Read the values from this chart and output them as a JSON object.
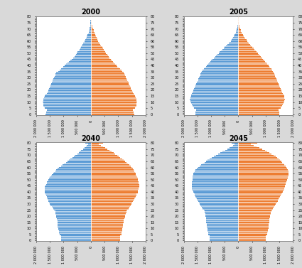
{
  "years": [
    "2000",
    "2005",
    "2040",
    "2045"
  ],
  "n_ages": 81,
  "male_color": "#5B9BD5",
  "female_color": "#ED7D31",
  "background_color": "#D9D9D9",
  "plot_background": "#FFFFFF",
  "title_fontsize": 7,
  "tick_fontsize": 3.5,
  "xlim": 2000000,
  "x_ticks": [
    -2000000,
    -1500000,
    -1000000,
    -500000,
    0,
    500000,
    1000000,
    1500000,
    2000000
  ],
  "x_tick_labels": [
    "2 000 000",
    "1 500 000",
    "1 000 000",
    "500 000",
    "0",
    "500 000",
    "1 000 000",
    "1 500 000",
    "2 000 000"
  ],
  "age_tick_step": 5,
  "age_tick_labels": [
    "0",
    "5",
    "10",
    "15",
    "20",
    "25",
    "30",
    "35",
    "40",
    "45",
    "50",
    "55",
    "60",
    "65",
    "70",
    "75",
    "80"
  ],
  "data": {
    "2000": {
      "male": [
        1650000,
        1640000,
        1630000,
        1620000,
        1610000,
        1700000,
        1720000,
        1730000,
        1740000,
        1750000,
        1760000,
        1750000,
        1740000,
        1730000,
        1720000,
        1680000,
        1650000,
        1620000,
        1590000,
        1570000,
        1550000,
        1530000,
        1510000,
        1490000,
        1470000,
        1450000,
        1430000,
        1410000,
        1390000,
        1370000,
        1350000,
        1330000,
        1310000,
        1290000,
        1270000,
        1200000,
        1150000,
        1100000,
        1050000,
        1000000,
        950000,
        900000,
        850000,
        800000,
        750000,
        700000,
        650000,
        600000,
        570000,
        540000,
        510000,
        480000,
        450000,
        420000,
        390000,
        360000,
        330000,
        300000,
        270000,
        240000,
        220000,
        200000,
        180000,
        160000,
        140000,
        120000,
        100000,
        85000,
        70000,
        60000,
        50000,
        40000,
        35000,
        30000,
        25000,
        20000,
        15000,
        12000,
        9000,
        7000,
        60000
      ],
      "female": [
        1580000,
        1570000,
        1560000,
        1550000,
        1540000,
        1620000,
        1640000,
        1660000,
        1670000,
        1680000,
        1690000,
        1680000,
        1670000,
        1660000,
        1650000,
        1620000,
        1590000,
        1560000,
        1530000,
        1510000,
        1490000,
        1470000,
        1450000,
        1430000,
        1410000,
        1390000,
        1370000,
        1350000,
        1330000,
        1310000,
        1290000,
        1270000,
        1250000,
        1230000,
        1210000,
        1160000,
        1110000,
        1060000,
        1020000,
        970000,
        930000,
        880000,
        840000,
        800000,
        760000,
        730000,
        690000,
        650000,
        620000,
        590000,
        560000,
        530000,
        500000,
        470000,
        440000,
        410000,
        380000,
        350000,
        320000,
        290000,
        270000,
        250000,
        230000,
        210000,
        190000,
        170000,
        150000,
        130000,
        110000,
        95000,
        80000,
        65000,
        55000,
        45000,
        37000,
        30000,
        24000,
        18000,
        13000,
        9000,
        90000
      ]
    },
    "2005": {
      "male": [
        1580000,
        1570000,
        1560000,
        1550000,
        1540000,
        1620000,
        1650000,
        1680000,
        1700000,
        1720000,
        1750000,
        1760000,
        1770000,
        1760000,
        1750000,
        1740000,
        1720000,
        1700000,
        1680000,
        1660000,
        1640000,
        1620000,
        1600000,
        1580000,
        1560000,
        1540000,
        1520000,
        1500000,
        1480000,
        1460000,
        1440000,
        1420000,
        1400000,
        1380000,
        1360000,
        1330000,
        1300000,
        1270000,
        1230000,
        1190000,
        1150000,
        1110000,
        1070000,
        1030000,
        990000,
        950000,
        900000,
        855000,
        810000,
        765000,
        720000,
        675000,
        630000,
        585000,
        540000,
        495000,
        450000,
        405000,
        360000,
        315000,
        280000,
        250000,
        220000,
        190000,
        160000,
        140000,
        120000,
        100000,
        82000,
        66000,
        52000,
        40000,
        32000,
        25000,
        19000,
        14000,
        11000,
        8500,
        6000,
        4500,
        55000
      ],
      "female": [
        1510000,
        1500000,
        1490000,
        1480000,
        1470000,
        1550000,
        1580000,
        1610000,
        1630000,
        1650000,
        1680000,
        1690000,
        1700000,
        1690000,
        1680000,
        1670000,
        1650000,
        1630000,
        1610000,
        1590000,
        1570000,
        1550000,
        1530000,
        1510000,
        1490000,
        1470000,
        1450000,
        1430000,
        1410000,
        1390000,
        1370000,
        1350000,
        1330000,
        1310000,
        1290000,
        1270000,
        1240000,
        1210000,
        1170000,
        1130000,
        1100000,
        1060000,
        1020000,
        980000,
        940000,
        910000,
        870000,
        830000,
        790000,
        750000,
        710000,
        670000,
        630000,
        590000,
        550000,
        510000,
        470000,
        430000,
        390000,
        350000,
        320000,
        290000,
        260000,
        230000,
        200000,
        175000,
        150000,
        128000,
        106000,
        86000,
        68000,
        53000,
        42000,
        32000,
        24000,
        17000,
        13000,
        9500,
        7000,
        5000,
        80000
      ]
    },
    "2040": {
      "male": [
        1100000,
        1100000,
        1100000,
        1100000,
        1100000,
        1150000,
        1160000,
        1170000,
        1180000,
        1190000,
        1200000,
        1210000,
        1210000,
        1210000,
        1210000,
        1220000,
        1230000,
        1240000,
        1250000,
        1260000,
        1270000,
        1280000,
        1290000,
        1300000,
        1310000,
        1350000,
        1380000,
        1410000,
        1440000,
        1470000,
        1500000,
        1530000,
        1560000,
        1570000,
        1580000,
        1600000,
        1620000,
        1640000,
        1660000,
        1680000,
        1680000,
        1680000,
        1680000,
        1680000,
        1680000,
        1660000,
        1640000,
        1620000,
        1600000,
        1580000,
        1560000,
        1540000,
        1500000,
        1460000,
        1420000,
        1380000,
        1340000,
        1300000,
        1260000,
        1220000,
        1160000,
        1100000,
        1040000,
        980000,
        920000,
        860000,
        800000,
        740000,
        680000,
        620000,
        560000,
        500000,
        450000,
        400000,
        350000,
        290000,
        240000,
        190000,
        150000,
        110000,
        200000
      ],
      "female": [
        1060000,
        1060000,
        1060000,
        1060000,
        1060000,
        1110000,
        1120000,
        1130000,
        1140000,
        1150000,
        1160000,
        1170000,
        1180000,
        1180000,
        1180000,
        1190000,
        1200000,
        1210000,
        1220000,
        1240000,
        1250000,
        1265000,
        1280000,
        1295000,
        1310000,
        1340000,
        1370000,
        1400000,
        1430000,
        1460000,
        1490000,
        1520000,
        1550000,
        1570000,
        1590000,
        1610000,
        1630000,
        1660000,
        1680000,
        1710000,
        1720000,
        1730000,
        1740000,
        1750000,
        1760000,
        1760000,
        1760000,
        1750000,
        1740000,
        1730000,
        1720000,
        1710000,
        1690000,
        1670000,
        1650000,
        1630000,
        1610000,
        1590000,
        1560000,
        1530000,
        1490000,
        1450000,
        1400000,
        1350000,
        1300000,
        1250000,
        1200000,
        1140000,
        1080000,
        1020000,
        960000,
        900000,
        830000,
        760000,
        690000,
        610000,
        530000,
        450000,
        370000,
        290000,
        450000
      ]
    },
    "2045": {
      "male": [
        1050000,
        1050000,
        1050000,
        1050000,
        1050000,
        1090000,
        1100000,
        1110000,
        1120000,
        1130000,
        1140000,
        1150000,
        1160000,
        1160000,
        1160000,
        1170000,
        1175000,
        1180000,
        1185000,
        1190000,
        1200000,
        1210000,
        1220000,
        1230000,
        1240000,
        1270000,
        1300000,
        1330000,
        1360000,
        1390000,
        1420000,
        1450000,
        1480000,
        1500000,
        1520000,
        1540000,
        1565000,
        1590000,
        1610000,
        1635000,
        1660000,
        1680000,
        1700000,
        1700000,
        1700000,
        1700000,
        1700000,
        1700000,
        1690000,
        1680000,
        1680000,
        1680000,
        1680000,
        1670000,
        1660000,
        1640000,
        1620000,
        1600000,
        1560000,
        1520000,
        1470000,
        1420000,
        1360000,
        1300000,
        1240000,
        1180000,
        1120000,
        1060000,
        980000,
        900000,
        820000,
        740000,
        660000,
        570000,
        480000,
        390000,
        310000,
        240000,
        180000,
        130000,
        250000
      ],
      "female": [
        1010000,
        1010000,
        1010000,
        1010000,
        1010000,
        1050000,
        1060000,
        1070000,
        1080000,
        1090000,
        1100000,
        1110000,
        1120000,
        1120000,
        1120000,
        1130000,
        1135000,
        1140000,
        1145000,
        1150000,
        1160000,
        1170000,
        1180000,
        1190000,
        1200000,
        1230000,
        1260000,
        1290000,
        1320000,
        1350000,
        1380000,
        1410000,
        1440000,
        1460000,
        1480000,
        1500000,
        1525000,
        1550000,
        1575000,
        1600000,
        1625000,
        1650000,
        1675000,
        1690000,
        1700000,
        1715000,
        1730000,
        1745000,
        1760000,
        1775000,
        1790000,
        1805000,
        1820000,
        1830000,
        1840000,
        1840000,
        1840000,
        1830000,
        1810000,
        1790000,
        1760000,
        1730000,
        1690000,
        1650000,
        1610000,
        1570000,
        1530000,
        1480000,
        1420000,
        1360000,
        1290000,
        1220000,
        1140000,
        1060000,
        970000,
        870000,
        770000,
        670000,
        570000,
        470000,
        700000
      ]
    }
  }
}
